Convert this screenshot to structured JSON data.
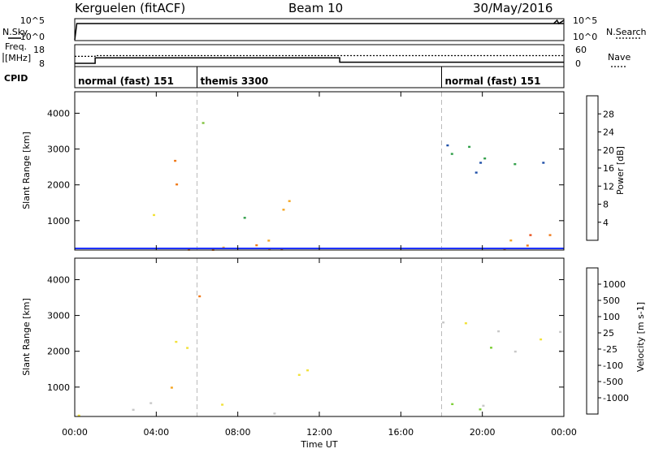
{
  "header": {
    "station": "Kerguelen (fitACF)",
    "beam": "Beam 10",
    "date": "30/May/2016"
  },
  "top_panels": {
    "nsky_label": "N.Sky",
    "nsky_ticks": [
      "10^5",
      "10^0"
    ],
    "nsearch_label": "N.Search",
    "nsearch_ticks": [
      "10^5",
      "10^0"
    ],
    "freq_label_line1": "Freq.",
    "freq_label_line2": "[MHz]",
    "freq_ticks": [
      "18",
      "8"
    ],
    "nave_label": "Nave",
    "nave_ticks": [
      "60",
      "0"
    ],
    "cpid_label": "CPID"
  },
  "chart_data": [
    {
      "type": "line",
      "title": "",
      "ylabel": "N.Sky / N.Search",
      "series": [
        {
          "name": "N.Sky",
          "x": [
            "00:00",
            "00:06",
            "24:00"
          ],
          "values": [
            1,
            100000,
            100000
          ]
        },
        {
          "name": "N.Search",
          "x": [
            "23:30",
            "23:40",
            "23:45",
            "24:00"
          ],
          "values": [
            100000,
            1000000,
            100000,
            1000000
          ]
        }
      ],
      "xlim": [
        "00:00",
        "24:00"
      ]
    },
    {
      "type": "line",
      "ylabel": "Freq. [MHz]",
      "series": [
        {
          "name": "Freq.",
          "x": [
            "00:00",
            "01:00",
            "01:00",
            "13:00",
            "13:00",
            "24:00"
          ],
          "values": [
            9.5,
            9.5,
            12,
            12,
            10,
            10
          ]
        },
        {
          "name": "Nave",
          "x": [
            "00:00",
            "01:00",
            "01:00",
            "18:00",
            "18:00",
            "24:00"
          ],
          "values": [
            28,
            28,
            30,
            30,
            30,
            30
          ]
        }
      ],
      "ylim": [
        8,
        18
      ],
      "y2lim": [
        0,
        60
      ]
    },
    {
      "type": "table",
      "title": "CPID",
      "segments": [
        {
          "start": "00:00",
          "end": "06:00",
          "label": "normal (fast) 151"
        },
        {
          "start": "06:00",
          "end": "18:00",
          "label": "themis 3300"
        },
        {
          "start": "18:00",
          "end": "24:00",
          "label": "normal (fast) 151"
        }
      ]
    },
    {
      "type": "heatmap",
      "title": "",
      "ylabel": "Slant Range [km]",
      "yticks": [
        "1000",
        "2000",
        "3000",
        "4000"
      ],
      "ylim": [
        180,
        4600
      ],
      "colorbar_label": "Power [dB]",
      "colorbar_ticks": [
        "4",
        "8",
        "12",
        "16",
        "20",
        "24",
        "28"
      ],
      "colorbar_colors": [
        "#1e32ff",
        "#1e4fa8",
        "#32a04a",
        "#7fc23c",
        "#f2e23a",
        "#f5a623",
        "#f07a1a",
        "#e8501a",
        "#e01e1e"
      ],
      "zlim": [
        0,
        30
      ],
      "echo_regions": [
        {
          "t0": 0.0,
          "t1": 24.0,
          "r0": 180,
          "r1": 500,
          "value": 20
        },
        {
          "t0": 3.3,
          "t1": 4.8,
          "r0": 900,
          "r1": 1300,
          "value": 14
        },
        {
          "t0": 4.8,
          "t1": 6.5,
          "r0": 1900,
          "r1": 2700,
          "value": 22
        },
        {
          "t0": 5.8,
          "t1": 6.5,
          "r0": 2800,
          "r1": 4400,
          "value": 8
        },
        {
          "t0": 9.5,
          "t1": 12.0,
          "r0": 1100,
          "r1": 1700,
          "value": 20
        },
        {
          "t0": 7.5,
          "t1": 9.5,
          "r0": 1000,
          "r1": 1500,
          "value": 10
        },
        {
          "t0": 18.0,
          "t1": 24.0,
          "r0": 300,
          "r1": 700,
          "value": 22
        },
        {
          "t0": 18.0,
          "t1": 24.0,
          "r0": 2000,
          "r1": 3200,
          "value": 6
        }
      ]
    },
    {
      "type": "heatmap",
      "title": "",
      "ylabel": "Slant Range [km]",
      "yticks": [
        "1000",
        "2000",
        "3000",
        "4000"
      ],
      "ylim": [
        180,
        4600
      ],
      "colorbar_label": "Velocity [m s-1]",
      "colorbar_ticks": [
        "1000",
        "500",
        "100",
        "25",
        "-25",
        "-100",
        "-500",
        "-1000"
      ],
      "colorbar_colors": [
        "#1a3fae",
        "#2a62c0",
        "#3c9e4a",
        "#7fd03a",
        "#c8c8c8",
        "#f2e23a",
        "#f5a623",
        "#f07a1a",
        "#e01e1e"
      ],
      "zlim": [
        -1000,
        1000
      ],
      "echo_regions": [
        {
          "t0": 0.0,
          "t1": 10.0,
          "r0": 180,
          "r1": 600,
          "value": -150
        },
        {
          "t0": 3.3,
          "t1": 4.8,
          "r0": 800,
          "r1": 1300,
          "value": -300
        },
        {
          "t0": 4.8,
          "t1": 6.5,
          "r0": 1900,
          "r1": 2700,
          "value": -400
        },
        {
          "t0": 5.8,
          "t1": 6.5,
          "r0": 2800,
          "r1": 4400,
          "value": -600
        },
        {
          "t0": 9.5,
          "t1": 12.0,
          "r0": 1100,
          "r1": 1700,
          "value": 0
        },
        {
          "t0": 18.0,
          "t1": 24.0,
          "r0": 300,
          "r1": 700,
          "value": 80
        },
        {
          "t0": 18.0,
          "t1": 24.0,
          "r0": 2000,
          "r1": 3200,
          "value": 0
        }
      ]
    }
  ],
  "xaxis": {
    "label": "Time UT",
    "ticks": [
      "00:00",
      "04:00",
      "08:00",
      "12:00",
      "16:00",
      "20:00",
      "00:00"
    ]
  }
}
